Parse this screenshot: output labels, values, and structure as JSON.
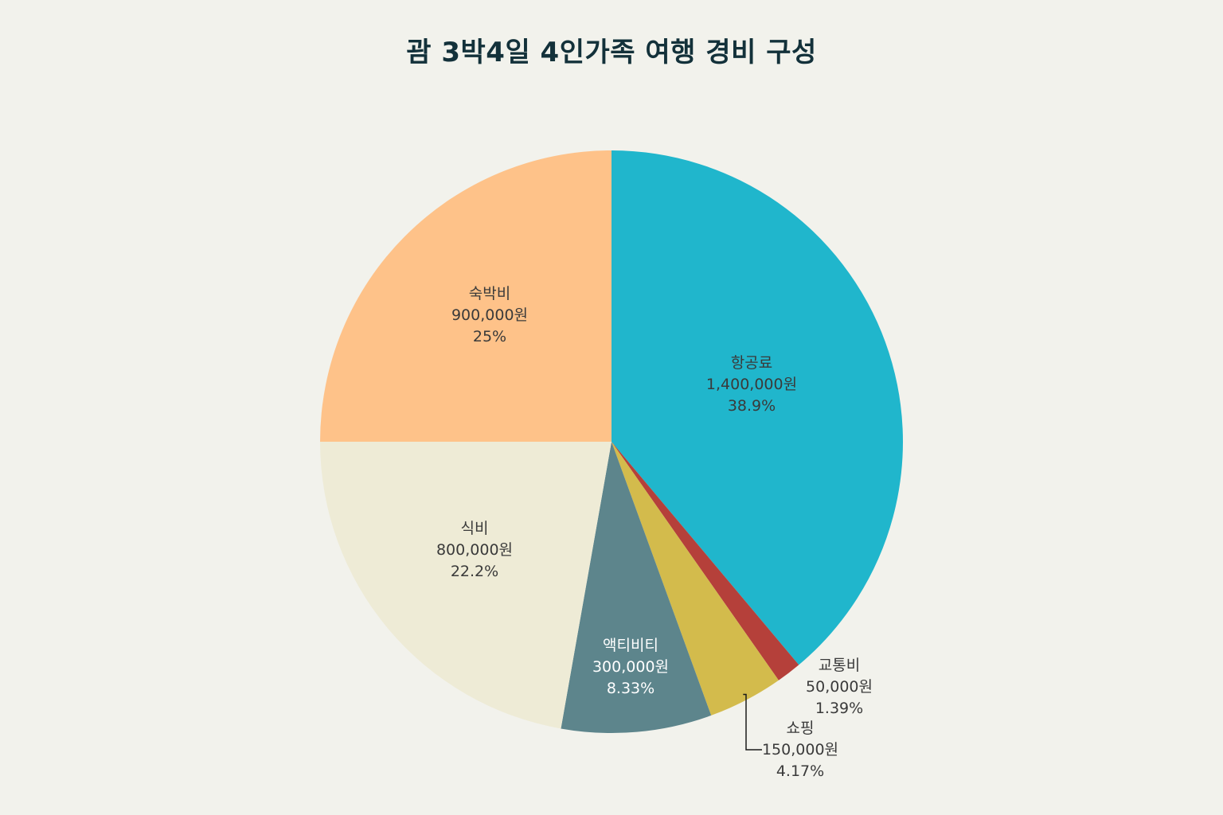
{
  "chart_data": {
    "type": "pie",
    "title": "괌 3박4일 4인가족 여행 경비 구성",
    "unit": "원",
    "slices": [
      {
        "name": "항공료",
        "value": 1400000,
        "value_label": "1,400,000원",
        "percent_label": "38.9%",
        "color": "#20b6cc"
      },
      {
        "name": "교통비",
        "value": 50000,
        "value_label": "50,000원",
        "percent_label": "1.39%",
        "color": "#b5403a"
      },
      {
        "name": "쇼핑",
        "value": 150000,
        "value_label": "150,000원",
        "percent_label": "4.17%",
        "color": "#d3bb4c"
      },
      {
        "name": "액티비티",
        "value": 300000,
        "value_label": "300,000원",
        "percent_label": "8.33%",
        "color": "#5d858c"
      },
      {
        "name": "식비",
        "value": 800000,
        "value_label": "800,000원",
        "percent_label": "22.2%",
        "color": "#eeebd6"
      },
      {
        "name": "숙박비",
        "value": 900000,
        "value_label": "900,000원",
        "percent_label": "25%",
        "color": "#fec289"
      }
    ],
    "start_angle": "12 o'clock",
    "direction": "clockwise",
    "legend": "none"
  }
}
